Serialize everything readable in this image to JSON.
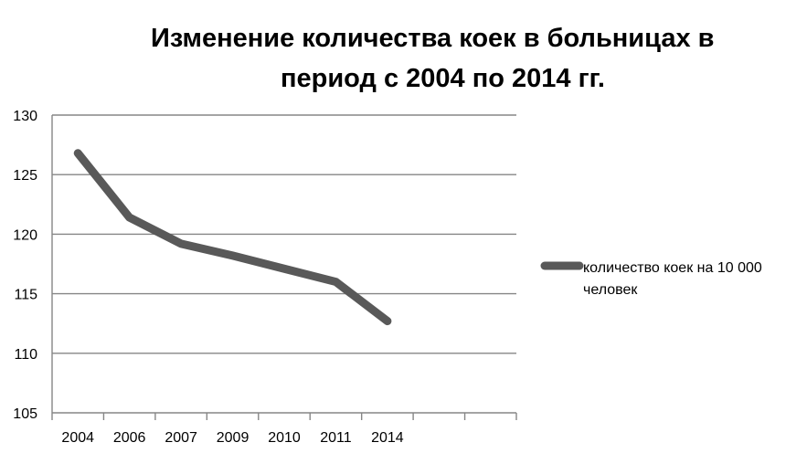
{
  "chart_data": {
    "type": "line",
    "title_lines": [
      "Изменение количества коек в больницах в",
      "период с 2004 по 2014 гг."
    ],
    "categories": [
      "2004",
      "2006",
      "2007",
      "2009",
      "2010",
      "2011",
      "2014"
    ],
    "series": [
      {
        "name": "количество коек на 10 000 человек",
        "name_lines": [
          "количество коек на 10 000",
          "человек"
        ],
        "values": [
          126.8,
          121.4,
          119.2,
          118.2,
          117.1,
          116.0,
          112.7
        ],
        "color": "#595959"
      }
    ],
    "ylim": [
      105,
      130
    ],
    "yticks": [
      105,
      110,
      115,
      120,
      125,
      130
    ],
    "grid": true,
    "legend": "right",
    "colors": {
      "gridline": "#868686",
      "axis": "#868686",
      "text": "#000000"
    }
  }
}
